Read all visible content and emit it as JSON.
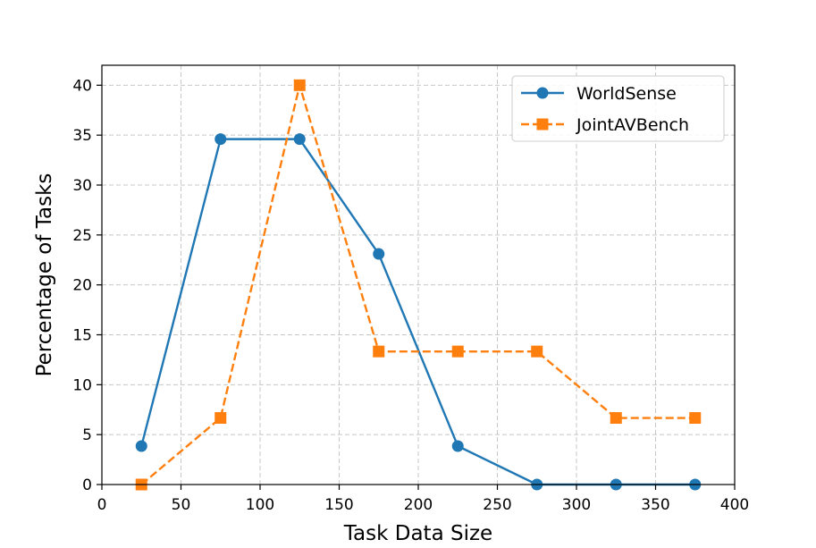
{
  "chart_data": {
    "type": "line",
    "title": "",
    "xlabel": "Task Data Size",
    "ylabel": "Percentage of Tasks",
    "xlim": [
      0,
      400
    ],
    "ylim": [
      0,
      42
    ],
    "xticks": [
      0,
      50,
      100,
      150,
      200,
      250,
      300,
      350,
      400
    ],
    "yticks": [
      0,
      5,
      10,
      15,
      20,
      25,
      30,
      35,
      40
    ],
    "grid": true,
    "legend_position": "top-right",
    "x": [
      25,
      75,
      125,
      175,
      225,
      275,
      325,
      375
    ],
    "series": [
      {
        "name": "WorldSense",
        "color": "#1f77b4",
        "linestyle": "solid",
        "marker": "circle",
        "values": [
          3.85,
          34.6,
          34.6,
          23.1,
          3.85,
          0,
          0,
          0
        ]
      },
      {
        "name": "JointAVBench",
        "color": "#ff7f0e",
        "linestyle": "dashed",
        "marker": "square",
        "values": [
          0,
          6.67,
          40.0,
          13.33,
          13.33,
          13.33,
          6.67,
          6.67
        ]
      }
    ]
  }
}
